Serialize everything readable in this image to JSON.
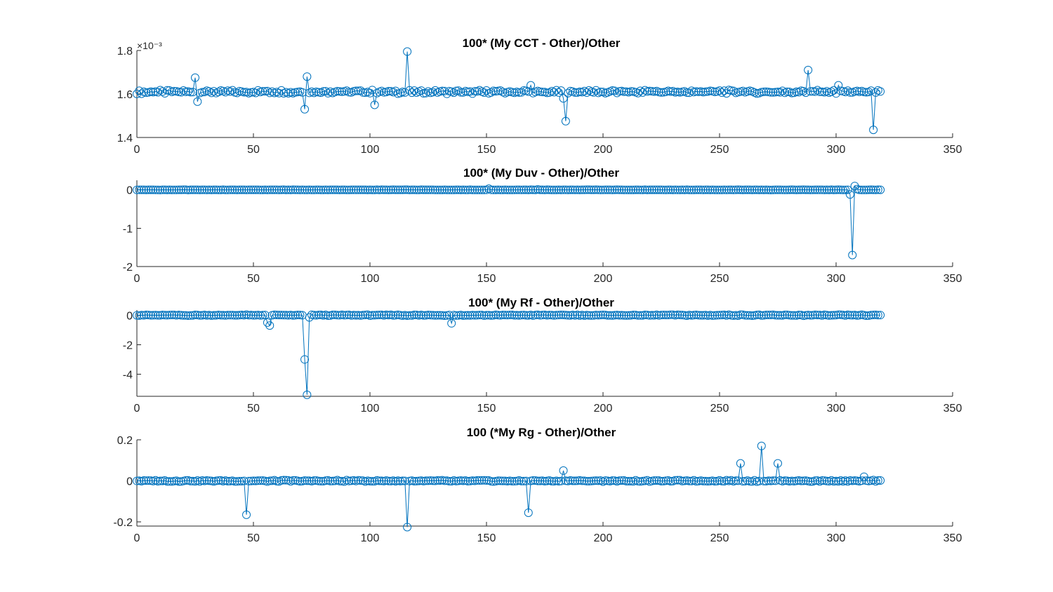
{
  "chart_data": [
    {
      "type": "line",
      "title": "100* (My CCT - Other)/Other",
      "exponent_label": "×10⁻³",
      "xlim": [
        0,
        350
      ],
      "ylim": [
        1.4,
        1.8
      ],
      "xticks": [
        0,
        50,
        100,
        150,
        200,
        250,
        300,
        350
      ],
      "yticks": [
        1.4,
        1.6,
        1.8
      ],
      "ytick_labels": [
        "1.4",
        "1.6",
        "1.8"
      ],
      "marker": "circle",
      "color": "#0072BD",
      "n_points": 320,
      "baseline": 1.61,
      "outliers": [
        [
          25,
          1.675
        ],
        [
          26,
          1.565
        ],
        [
          72,
          1.53
        ],
        [
          73,
          1.68
        ],
        [
          102,
          1.55
        ],
        [
          116,
          1.795
        ],
        [
          169,
          1.64
        ],
        [
          183,
          1.58
        ],
        [
          184,
          1.475
        ],
        [
          288,
          1.71
        ],
        [
          301,
          1.64
        ],
        [
          316,
          1.435
        ]
      ]
    },
    {
      "type": "line",
      "title": "100* (My Duv - Other)/Other",
      "xlim": [
        0,
        350
      ],
      "ylim": [
        -2,
        0.25
      ],
      "xticks": [
        0,
        50,
        100,
        150,
        200,
        250,
        300,
        350
      ],
      "yticks": [
        -2,
        -1,
        0
      ],
      "ytick_labels": [
        "-2",
        "-1",
        "0"
      ],
      "marker": "circle",
      "color": "#0072BD",
      "n_points": 320,
      "baseline": 0,
      "outliers": [
        [
          151,
          0.03
        ],
        [
          172,
          0.01
        ],
        [
          306,
          -0.12
        ],
        [
          307,
          -1.7
        ],
        [
          308,
          0.1
        ],
        [
          309,
          0.02
        ]
      ]
    },
    {
      "type": "line",
      "title": "100* (My Rf - Other)/Other",
      "xlim": [
        0,
        350
      ],
      "ylim": [
        -5.5,
        0.35
      ],
      "xticks": [
        0,
        50,
        100,
        150,
        200,
        250,
        300,
        350
      ],
      "yticks": [
        -4,
        -2,
        0
      ],
      "ytick_labels": [
        "-4",
        "-2",
        "0"
      ],
      "marker": "circle",
      "color": "#0072BD",
      "n_points": 320,
      "baseline": 0,
      "outliers": [
        [
          56,
          -0.5
        ],
        [
          57,
          -0.7
        ],
        [
          72,
          -3.0
        ],
        [
          73,
          -5.4
        ],
        [
          74,
          -0.15
        ],
        [
          135,
          -0.55
        ]
      ]
    },
    {
      "type": "line",
      "title": "100 (*My Rg - Other)/Other",
      "xlim": [
        0,
        350
      ],
      "ylim": [
        -0.22,
        0.2
      ],
      "xticks": [
        0,
        50,
        100,
        150,
        200,
        250,
        300,
        350
      ],
      "yticks": [
        -0.2,
        0,
        0.2
      ],
      "ytick_labels": [
        "-0.2",
        "0",
        "0.2"
      ],
      "marker": "circle",
      "color": "#0072BD",
      "n_points": 320,
      "baseline": 0,
      "outliers": [
        [
          47,
          -0.165
        ],
        [
          116,
          -0.225
        ],
        [
          168,
          -0.155
        ],
        [
          183,
          0.05
        ],
        [
          259,
          0.085
        ],
        [
          268,
          0.17
        ],
        [
          275,
          0.085
        ],
        [
          312,
          0.02
        ]
      ]
    }
  ]
}
